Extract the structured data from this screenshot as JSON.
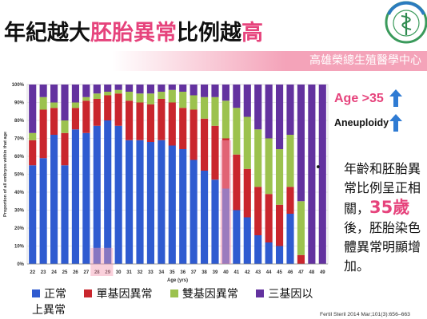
{
  "title": {
    "part1": "年紀越大",
    "part2": "胚胎異常",
    "part3": "比例越",
    "part4": "高",
    "accent_color": "#e6437c"
  },
  "banner": {
    "text": "高雄榮總生殖醫學中心",
    "color": "#f4a3b9"
  },
  "logo": {
    "icon": "hospital-logo"
  },
  "chart_data": {
    "type": "bar",
    "stacked": true,
    "categories": [
      "22",
      "23",
      "24",
      "25",
      "26",
      "27",
      "28",
      "29",
      "30",
      "31",
      "32",
      "33",
      "34",
      "35",
      "36",
      "37",
      "38",
      "39",
      "40",
      "41",
      "42",
      "43",
      "44",
      "45",
      "46",
      "47",
      "48",
      "49"
    ],
    "series": [
      {
        "name": "正常",
        "color": "#2f5bd0",
        "values": [
          55,
          59,
          72,
          55,
          75,
          73,
          77,
          80,
          77,
          69,
          69,
          68,
          69,
          66,
          64,
          58,
          52,
          47,
          42,
          30,
          26,
          16,
          12,
          10,
          28,
          0,
          0,
          0
        ]
      },
      {
        "name": "單基因異常",
        "color": "#c9262d",
        "values": [
          14,
          27,
          15,
          18,
          12,
          18,
          15,
          14,
          18,
          22,
          21,
          21,
          23,
          24,
          23,
          28,
          29,
          30,
          28,
          31,
          27,
          27,
          27,
          23,
          15,
          5,
          0,
          0
        ]
      },
      {
        "name": "雙基因異常",
        "color": "#9cc24e",
        "values": [
          4,
          7,
          3,
          7,
          3,
          2,
          3,
          2,
          2,
          5,
          5,
          6,
          4,
          7,
          9,
          8,
          12,
          16,
          21,
          26,
          29,
          32,
          31,
          31,
          29,
          30,
          0,
          0
        ]
      },
      {
        "name": "三基因以上異常",
        "color": "#63329f",
        "values": [
          27,
          7,
          10,
          20,
          10,
          7,
          5,
          4,
          3,
          4,
          5,
          5,
          4,
          3,
          4,
          6,
          7,
          7,
          9,
          13,
          18,
          25,
          30,
          36,
          28,
          65,
          100,
          100
        ]
      }
    ],
    "xlabel": "Age (yrs)",
    "ylabel": "Proportion of all embryos within that age",
    "ylim": [
      0,
      100
    ],
    "yticks": [
      "0%",
      "10%",
      "20%",
      "30%",
      "40%",
      "50%",
      "60%",
      "70%",
      "80%",
      "90%",
      "100%"
    ],
    "grid": true,
    "legend": "bottom"
  },
  "side_panel": {
    "age_label": "Age >35",
    "aneuploidy_label": "Aneuploidy",
    "arrow_icon": "arrow-up-icon",
    "arrow_color": "#2f7bd3",
    "note": {
      "bullet": "•",
      "before": "年齡和胚胎異常比例呈正相關，",
      "highlight": "35歲",
      "after": "後，胚胎染色體異常明顯增加。"
    }
  },
  "citation": "Fertil Steril 2014 Mar;101(3):656–663"
}
